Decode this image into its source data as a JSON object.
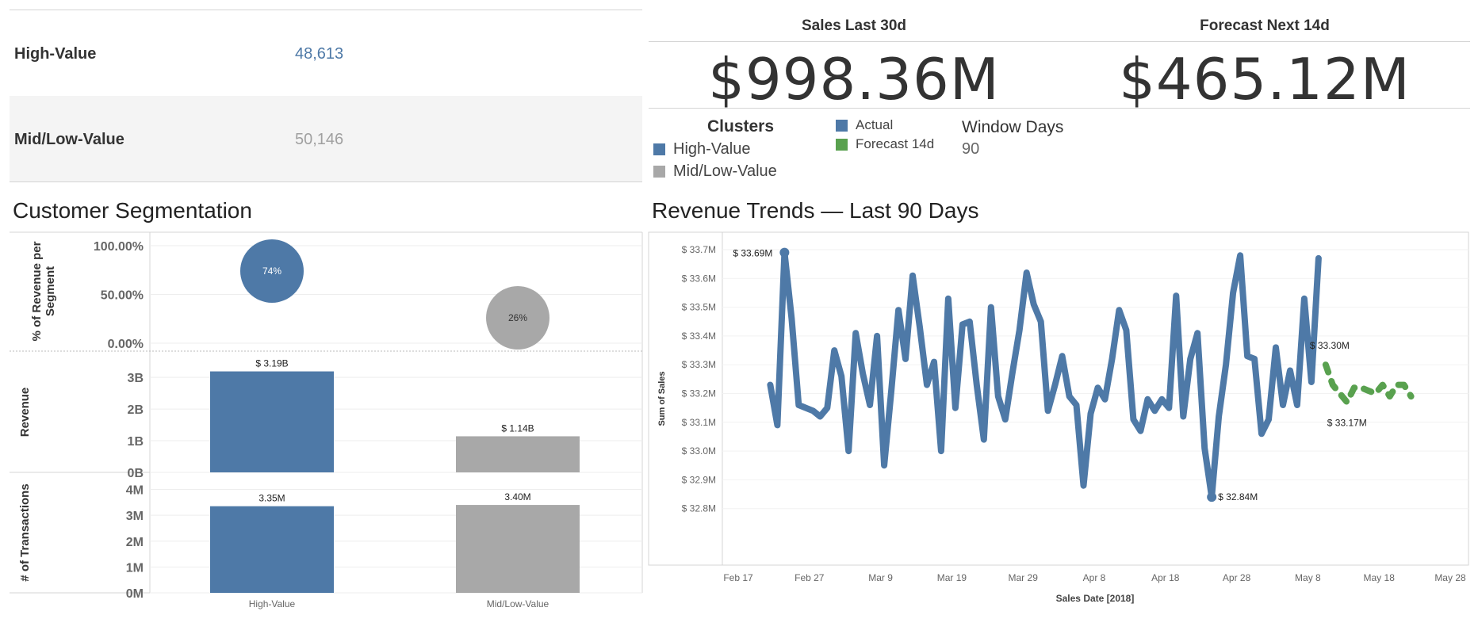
{
  "segments": {
    "rows": [
      {
        "label": "High-Value",
        "value": "48,613",
        "color": "#4e79a7"
      },
      {
        "label": "Mid/Low-Value",
        "value": "50,146",
        "color": "#9e9e9e"
      }
    ]
  },
  "kpis": [
    {
      "title": "Sales Last 30d",
      "value": "$998.36M"
    },
    {
      "title": "Forecast Next 14d",
      "value": "$465.12M"
    }
  ],
  "legends": {
    "clusters": {
      "title": "Clusters",
      "items": [
        {
          "label": "High-Value",
          "color": "#4e79a7"
        },
        {
          "label": "Mid/Low-Value",
          "color": "#a8a8a8"
        }
      ]
    },
    "series": {
      "items": [
        {
          "label": "Actual",
          "color": "#4e79a7"
        },
        {
          "label": "Forecast 14d",
          "color": "#59a14f"
        }
      ]
    },
    "window": {
      "title": "Window Days",
      "value": "90"
    }
  },
  "titles": {
    "segmentation": "Customer Segmentation",
    "trends": "Revenue Trends — Last 90 Days"
  },
  "chart_data": [
    {
      "type": "scatter",
      "title": "Customer Segmentation — % of Revenue per Segment",
      "ylabel": "% of Revenue per Segment",
      "categories": [
        "High-Value",
        "Mid/Low-Value"
      ],
      "values": [
        0.74,
        0.26
      ],
      "data_labels": [
        "74%",
        "26%"
      ],
      "yticks": [
        "100.00%",
        "50.00%",
        "0.00%"
      ],
      "ylim": [
        0,
        1.1
      ],
      "colors": [
        "#4e79a7",
        "#a8a8a8"
      ]
    },
    {
      "type": "bar",
      "ylabel": "Revenue",
      "categories": [
        "High-Value",
        "Mid/Low-Value"
      ],
      "values": [
        3.19,
        1.14
      ],
      "data_labels": [
        "$ 3.19B",
        "$ 1.14B"
      ],
      "yticks": [
        "3B",
        "2B",
        "1B",
        "0B"
      ],
      "ylim": [
        0,
        3.6
      ],
      "colors": [
        "#4e79a7",
        "#a8a8a8"
      ]
    },
    {
      "type": "bar",
      "ylabel": "# of Transactions",
      "categories": [
        "High-Value",
        "Mid/Low-Value"
      ],
      "values": [
        3.35,
        3.4
      ],
      "data_labels": [
        "3.35M",
        "3.40M"
      ],
      "yticks": [
        "4M",
        "3M",
        "2M",
        "1M",
        "0M"
      ],
      "ylim": [
        0,
        4.15
      ],
      "colors": [
        "#4e79a7",
        "#a8a8a8"
      ],
      "xlabels": [
        "High-Value",
        "Mid/Low-Value"
      ]
    },
    {
      "type": "line",
      "title": "Revenue Trends — Last 90 Days",
      "xlabel": "Sales Date [2018]",
      "ylabel": "Sum of Sales",
      "xlim": [
        0,
        102
      ],
      "ylim": [
        32.78,
        33.74
      ],
      "xticks": [
        {
          "label": "Feb 17",
          "d": 0
        },
        {
          "label": "Feb 27",
          "d": 10
        },
        {
          "label": "Mar 9",
          "d": 20
        },
        {
          "label": "Mar 19",
          "d": 30
        },
        {
          "label": "Mar 29",
          "d": 40
        },
        {
          "label": "Apr 8",
          "d": 50
        },
        {
          "label": "Apr 18",
          "d": 60
        },
        {
          "label": "Apr 28",
          "d": 70
        },
        {
          "label": "May 8",
          "d": 80
        },
        {
          "label": "May 18",
          "d": 90
        },
        {
          "label": "May 28",
          "d": 100
        }
      ],
      "yticks": [
        "$ 33.7M",
        "$ 33.6M",
        "$ 33.5M",
        "$ 33.4M",
        "$ 33.3M",
        "$ 33.2M",
        "$ 33.1M",
        "$ 33.0M",
        "$ 32.9M",
        "$ 32.8M"
      ],
      "ytick_values": [
        33.7,
        33.6,
        33.5,
        33.4,
        33.3,
        33.2,
        33.1,
        33.0,
        32.9,
        32.8
      ],
      "series": [
        {
          "name": "Actual",
          "color": "#4e79a7",
          "x": [
            4.5,
            5.5,
            6.5,
            7.5,
            8.5,
            9.5,
            10.5,
            11.5,
            12.5,
            13.5,
            14.5,
            15.5,
            16.5,
            17.5,
            18.5,
            19.5,
            20.5,
            21.5,
            22.5,
            23.5,
            24.5,
            25.5,
            26.5,
            27.5,
            28.5,
            29.5,
            30.5,
            31.5,
            32.5,
            33.5,
            34.5,
            35.5,
            36.5,
            37.5,
            38.5,
            39.5,
            40.5,
            41.5,
            42.5,
            43.5,
            44.5,
            45.5,
            46.5,
            47.5,
            48.5,
            49.5,
            50.5,
            51.5,
            52.5,
            53.5,
            54.5,
            55.5,
            56.5,
            57.5,
            58.5,
            59.5,
            60.5,
            61.5,
            62.5,
            63.5,
            64.5,
            65.5,
            66.5,
            67.5,
            68.5,
            69.5,
            70.5,
            71.5,
            72.5,
            73.5,
            74.5,
            75.5,
            76.5,
            77.5,
            78.5,
            79.5,
            80.5,
            81.5
          ],
          "y": [
            33.23,
            33.09,
            33.69,
            33.46,
            33.16,
            33.15,
            33.14,
            33.12,
            33.15,
            33.35,
            33.26,
            33.0,
            33.41,
            33.27,
            33.16,
            33.4,
            32.95,
            33.21,
            33.49,
            33.32,
            33.61,
            33.43,
            33.23,
            33.31,
            33.0,
            33.53,
            33.15,
            33.44,
            33.45,
            33.23,
            33.04,
            33.5,
            33.19,
            33.11,
            33.27,
            33.42,
            33.62,
            33.51,
            33.45,
            33.14,
            33.23,
            33.33,
            33.19,
            33.16,
            32.88,
            33.13,
            33.22,
            33.18,
            33.32,
            33.49,
            33.42,
            33.11,
            33.07,
            33.18,
            33.14,
            33.18,
            33.15,
            33.54,
            33.12,
            33.32,
            33.41,
            33.01,
            32.84,
            33.12,
            33.3,
            33.55,
            33.68,
            33.33,
            33.32,
            33.06,
            33.11,
            33.36,
            33.16,
            33.28,
            33.16,
            33.53,
            33.24,
            33.67
          ]
        },
        {
          "name": "Forecast 14d",
          "color": "#59a14f",
          "x": [
            82.5,
            83.5,
            84.5,
            85.5,
            86.5,
            87.5,
            88.5,
            89.5,
            90.5,
            91.5,
            92.5,
            93.5,
            94.5
          ],
          "y": [
            33.3,
            33.23,
            33.2,
            33.17,
            33.22,
            33.22,
            33.21,
            33.2,
            33.23,
            33.19,
            33.23,
            33.23,
            33.19
          ]
        }
      ],
      "annotations": [
        {
          "text": "$ 33.69M",
          "x": 6.5,
          "y": 33.69
        },
        {
          "text": "$ 32.84M",
          "x": 66.5,
          "y": 32.84
        },
        {
          "text": "$ 33.30M",
          "x": 82.5,
          "y": 33.3
        },
        {
          "text": "$ 33.17M",
          "x": 85.5,
          "y": 33.17
        }
      ]
    }
  ]
}
